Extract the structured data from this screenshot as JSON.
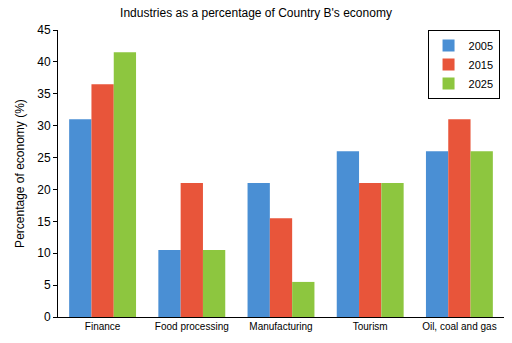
{
  "chart_data": {
    "type": "bar",
    "title": "Industries as a percentage of Country B's economy",
    "y_label": "Percentage of economy (%)",
    "categories": [
      "Finance",
      "Food processing",
      "Manufacturing",
      "Tourism",
      "Oil, coal and gas"
    ],
    "series": [
      {
        "name": "2005",
        "color": "#4a8fd4",
        "values": [
          31,
          10.5,
          21,
          26,
          26
        ]
      },
      {
        "name": "2015",
        "color": "#e8553a",
        "values": [
          36.5,
          21,
          15.5,
          21,
          31
        ]
      },
      {
        "name": "2025",
        "color": "#8dc63f",
        "values": [
          41.5,
          10.5,
          5.5,
          21,
          26
        ]
      }
    ],
    "ylim": [
      0,
      45
    ],
    "yticks": [
      0,
      5,
      10,
      15,
      20,
      25,
      30,
      35,
      40,
      45
    ],
    "grid": false,
    "legend": "top right"
  }
}
